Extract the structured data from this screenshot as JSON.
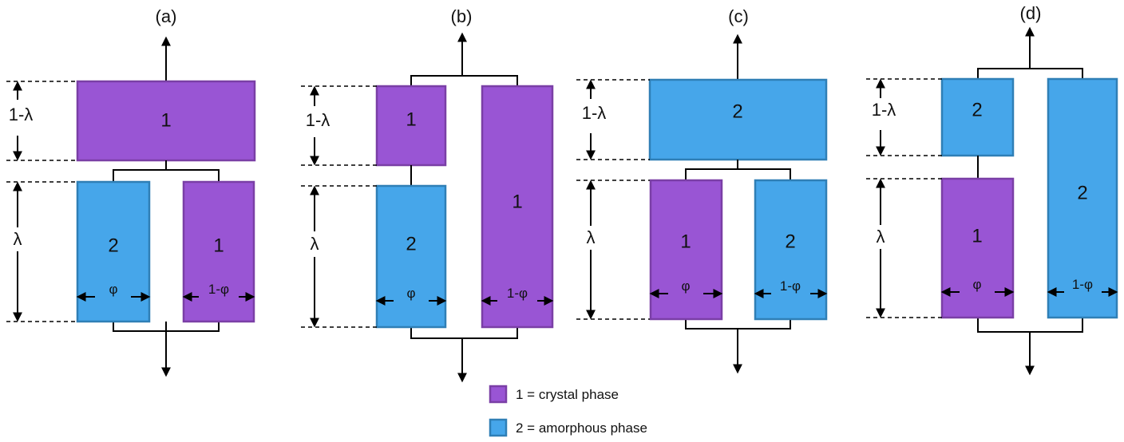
{
  "colors": {
    "crystal": "#9955d4",
    "amorphous": "#46a6ea"
  },
  "panels": {
    "a": {
      "label": "(a)",
      "top": "1",
      "bottom_left": "2",
      "bottom_right": "1",
      "dim_top": "1-λ",
      "dim_bottom": "λ",
      "width_left": "φ",
      "width_right": "1-φ"
    },
    "b": {
      "label": "(b)",
      "left_top": "1",
      "left_bottom": "2",
      "right": "1",
      "dim_top": "1-λ",
      "dim_bottom": "λ",
      "width_left": "φ",
      "width_right": "1-φ"
    },
    "c": {
      "label": "(c)",
      "top": "2",
      "bottom_left": "1",
      "bottom_right": "2",
      "dim_top": "1-λ",
      "dim_bottom": "λ",
      "width_left": "φ",
      "width_right": "1-φ"
    },
    "d": {
      "label": "(d)",
      "left_top": "2",
      "left_bottom": "1",
      "right": "2",
      "dim_top": "1-λ",
      "dim_bottom": "λ",
      "width_left": "φ",
      "width_right": "1-φ"
    }
  },
  "legend": {
    "crystal": "1 = crystal phase",
    "amorphous": "2 = amorphous phase"
  }
}
